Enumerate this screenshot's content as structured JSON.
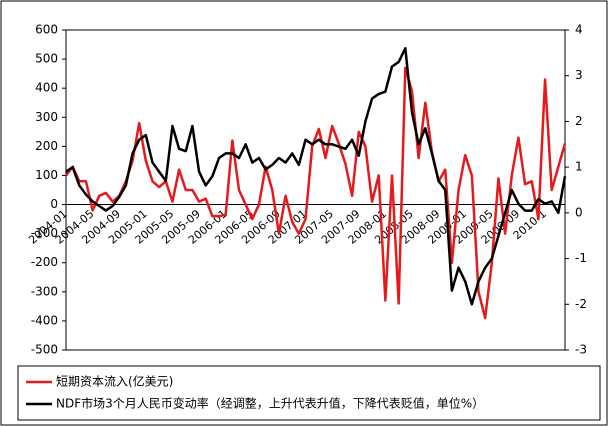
{
  "chart_data": {
    "type": "line",
    "categories": [
      "2004-01",
      null,
      null,
      null,
      "2004-05",
      null,
      null,
      null,
      "2004-09",
      null,
      null,
      null,
      "2005-01",
      null,
      null,
      null,
      "2005-05",
      null,
      null,
      null,
      "2005-09",
      null,
      null,
      null,
      "2006-01",
      null,
      null,
      null,
      "2006-05",
      null,
      null,
      null,
      "2006-09",
      null,
      null,
      null,
      "2007-01",
      null,
      null,
      null,
      "2007-05",
      null,
      null,
      null,
      "2007-09",
      null,
      null,
      null,
      "2008-01",
      null,
      null,
      null,
      "2008-05",
      null,
      null,
      null,
      "2008-09",
      null,
      null,
      null,
      "2009-01",
      null,
      null,
      null,
      "2009-05",
      null,
      null,
      null,
      "2009-09",
      null,
      null,
      null,
      "2010-1",
      null,
      null,
      null
    ],
    "series": [
      {
        "name": "短期资本流入(亿美元)",
        "color": "#e41a1c",
        "values": [
          100,
          130,
          80,
          80,
          -20,
          30,
          40,
          10,
          30,
          80,
          150,
          280,
          150,
          80,
          60,
          80,
          10,
          120,
          50,
          50,
          10,
          20,
          -40,
          -40,
          -35,
          220,
          50,
          0,
          -50,
          0,
          130,
          50,
          -100,
          30,
          -60,
          -100,
          -50,
          200,
          260,
          160,
          270,
          210,
          140,
          30,
          250,
          200,
          10,
          100,
          -330,
          100,
          -340,
          470,
          390,
          160,
          350,
          180,
          80,
          120,
          -200,
          50,
          170,
          100,
          -300,
          -390,
          -200,
          90,
          -100,
          100,
          230,
          70,
          80,
          -50,
          430,
          50,
          130,
          210
        ]
      },
      {
        "name": "NDF市场3个月人民币变动率（经调整，上升代表升值，下降代表贬值，单位%）",
        "color": "#000000",
        "axis": "y2",
        "values": [
          0.9,
          1.0,
          0.6,
          0.4,
          0.25,
          0.15,
          0.05,
          0.15,
          0.35,
          0.6,
          1.3,
          1.6,
          1.7,
          1.1,
          0.9,
          0.7,
          1.9,
          1.4,
          1.35,
          1.9,
          0.9,
          0.6,
          0.8,
          1.2,
          1.3,
          1.3,
          1.2,
          1.5,
          1.1,
          1.2,
          0.95,
          1.05,
          1.2,
          1.1,
          1.3,
          1.05,
          1.6,
          1.5,
          1.6,
          1.5,
          1.5,
          1.45,
          1.4,
          1.6,
          1.25,
          2.0,
          2.5,
          2.6,
          2.65,
          3.2,
          3.3,
          3.6,
          2.2,
          1.5,
          1.85,
          1.3,
          0.7,
          0.5,
          -1.7,
          -1.2,
          -1.5,
          -2.0,
          -1.5,
          -1.2,
          -1.0,
          -0.5,
          0.0,
          0.5,
          0.2,
          0.05,
          0.05,
          0.3,
          0.2,
          0.25,
          0.0,
          0.8
        ]
      }
    ],
    "ylim": [
      -500,
      600
    ],
    "yticks": [
      -500,
      -400,
      -300,
      -200,
      -100,
      0,
      100,
      200,
      300,
      400,
      500,
      600
    ],
    "y2lim": [
      -3,
      4
    ],
    "y2ticks": [
      -3,
      -2,
      -1,
      0,
      1,
      2,
      3,
      4
    ],
    "grid": false
  }
}
